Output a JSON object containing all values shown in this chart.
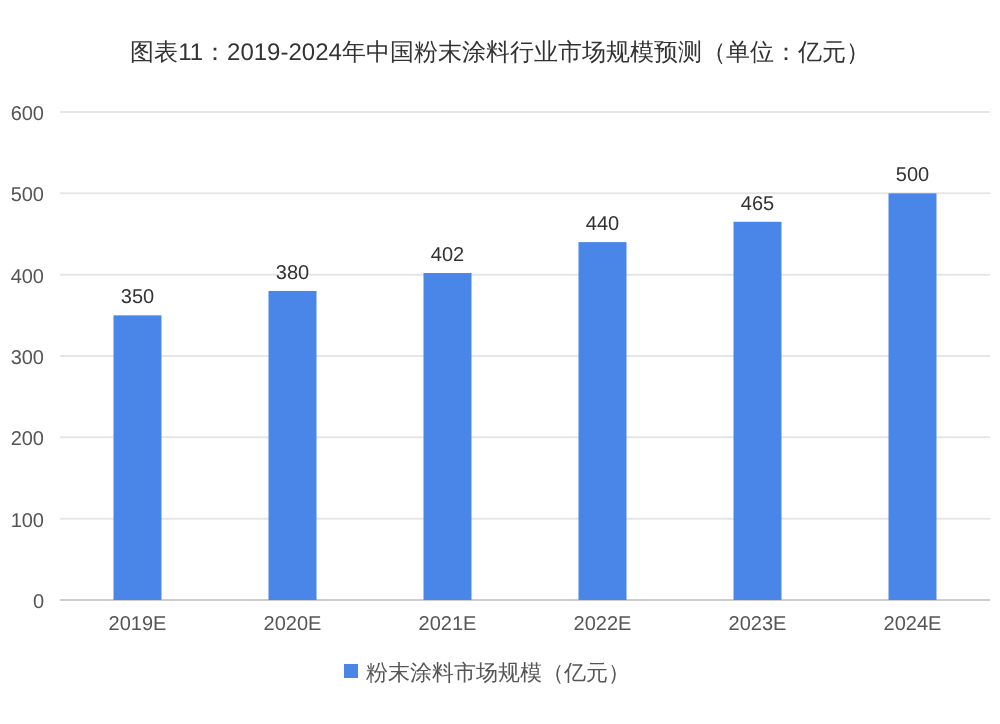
{
  "chart_data": {
    "type": "bar",
    "title": "图表11：2019-2024年中国粉末涂料行业市场规模预测（单位：亿元）",
    "categories": [
      "2019E",
      "2020E",
      "2021E",
      "2022E",
      "2023E",
      "2024E"
    ],
    "series": [
      {
        "name": "粉末涂料市场规模（亿元）",
        "color": "#4a86e8",
        "values": [
          350,
          380,
          402,
          440,
          465,
          500
        ]
      }
    ],
    "ylim": [
      0,
      600
    ],
    "yticks": [
      0,
      100,
      200,
      300,
      400,
      500,
      600
    ],
    "grid": "y",
    "data_labels": true,
    "legend": "bottom"
  }
}
